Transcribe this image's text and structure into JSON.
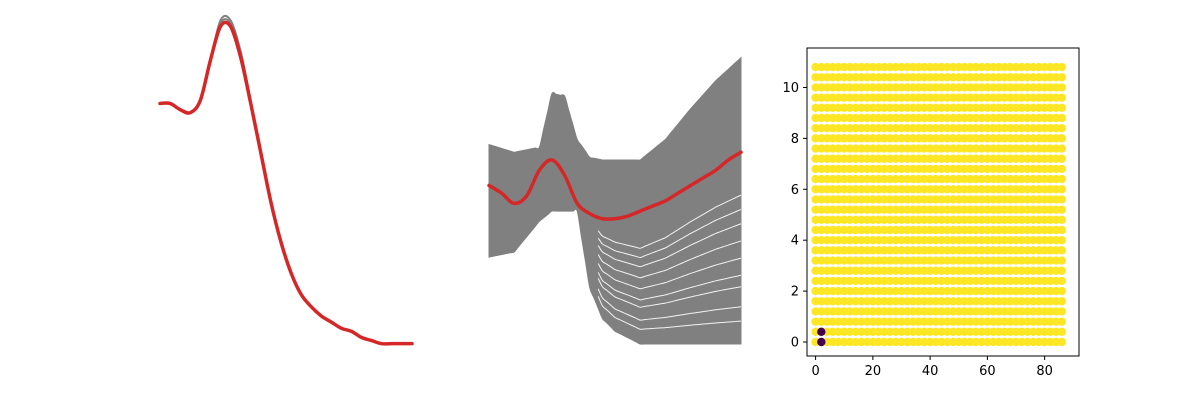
{
  "chart_data": [
    {
      "type": "line",
      "axes_visible": false,
      "series": [
        {
          "role": "samples",
          "color": "#808080",
          "curves": [
            {
              "x": [
                0.0,
                0.04,
                0.08,
                0.12,
                0.16,
                0.2,
                0.24,
                0.28,
                0.32,
                0.36,
                0.4,
                0.44,
                0.48,
                0.52,
                0.56,
                0.6,
                0.64,
                0.68,
                0.72,
                0.76,
                0.8,
                0.84,
                0.88,
                0.92,
                0.96,
                1.0
              ],
              "y": [
                0.82,
                0.82,
                0.8,
                0.79,
                0.83,
                0.96,
                1.08,
                1.08,
                0.98,
                0.82,
                0.66,
                0.5,
                0.37,
                0.27,
                0.2,
                0.16,
                0.13,
                0.11,
                0.09,
                0.08,
                0.06,
                0.05,
                0.04,
                0.04,
                0.04,
                0.04
              ]
            },
            {
              "x": [
                0.0,
                0.04,
                0.08,
                0.12,
                0.16,
                0.2,
                0.24,
                0.28,
                0.32,
                0.36,
                0.4,
                0.44,
                0.48,
                0.52,
                0.56,
                0.6,
                0.64,
                0.68,
                0.72,
                0.76,
                0.8,
                0.84,
                0.88,
                0.92,
                0.96,
                1.0
              ],
              "y": [
                0.82,
                0.82,
                0.8,
                0.79,
                0.83,
                0.96,
                1.09,
                1.09,
                0.99,
                0.83,
                0.66,
                0.5,
                0.37,
                0.27,
                0.2,
                0.16,
                0.13,
                0.11,
                0.09,
                0.08,
                0.06,
                0.05,
                0.04,
                0.04,
                0.04,
                0.04
              ]
            }
          ]
        },
        {
          "role": "mean",
          "color": "#d62728",
          "x": [
            0.0,
            0.04,
            0.08,
            0.12,
            0.16,
            0.2,
            0.24,
            0.28,
            0.32,
            0.36,
            0.4,
            0.44,
            0.48,
            0.52,
            0.56,
            0.6,
            0.64,
            0.68,
            0.72,
            0.76,
            0.8,
            0.84,
            0.88,
            0.92,
            0.96,
            1.0
          ],
          "y": [
            0.82,
            0.82,
            0.8,
            0.79,
            0.83,
            0.96,
            1.07,
            1.07,
            0.97,
            0.82,
            0.66,
            0.5,
            0.37,
            0.27,
            0.2,
            0.16,
            0.13,
            0.11,
            0.09,
            0.08,
            0.06,
            0.05,
            0.04,
            0.04,
            0.04,
            0.04
          ]
        }
      ]
    },
    {
      "type": "line",
      "axes_visible": false,
      "samples": {
        "color": "#808080",
        "band": [
          {
            "x": 0.0,
            "upper": 0.78,
            "lower": 0.34
          },
          {
            "x": 0.1,
            "upper": 0.75,
            "lower": 0.36
          },
          {
            "x": 0.2,
            "upper": 0.77,
            "lower": 0.48
          },
          {
            "x": 0.25,
            "upper": 0.98,
            "lower": 0.52
          },
          {
            "x": 0.3,
            "upper": 0.97,
            "lower": 0.52
          },
          {
            "x": 0.35,
            "upper": 0.8,
            "lower": 0.52
          },
          {
            "x": 0.4,
            "upper": 0.73,
            "lower": 0.22
          },
          {
            "x": 0.45,
            "upper": 0.72,
            "lower": 0.1
          },
          {
            "x": 0.5,
            "upper": 0.72,
            "lower": 0.05
          },
          {
            "x": 0.6,
            "upper": 0.72,
            "lower": 0.0
          },
          {
            "x": 0.7,
            "upper": 0.8,
            "lower": 0.0
          },
          {
            "x": 0.8,
            "upper": 0.92,
            "lower": 0.0
          },
          {
            "x": 0.9,
            "upper": 1.03,
            "lower": 0.0
          },
          {
            "x": 1.0,
            "upper": 1.12,
            "lower": 0.0
          }
        ],
        "gap_curves": [
          0.08,
          0.13,
          0.2,
          0.24,
          0.3,
          0.36,
          0.42,
          0.47,
          0.52
        ]
      },
      "mean": {
        "color": "#d62728",
        "x": [
          0.0,
          0.05,
          0.1,
          0.15,
          0.2,
          0.25,
          0.3,
          0.35,
          0.4,
          0.45,
          0.5,
          0.55,
          0.6,
          0.65,
          0.7,
          0.75,
          0.8,
          0.85,
          0.9,
          0.95,
          1.0
        ],
        "y": [
          0.62,
          0.59,
          0.55,
          0.58,
          0.68,
          0.72,
          0.66,
          0.55,
          0.51,
          0.49,
          0.49,
          0.5,
          0.52,
          0.54,
          0.56,
          0.59,
          0.62,
          0.65,
          0.68,
          0.72,
          0.75
        ]
      }
    },
    {
      "type": "scatter",
      "axes_visible": true,
      "xlim": [
        -3,
        92
      ],
      "ylim": [
        -0.55,
        11.55
      ],
      "xticks": [
        0,
        20,
        40,
        60,
        80
      ],
      "yticks": [
        0,
        2,
        4,
        6,
        8,
        10
      ],
      "grid": false,
      "grid_points": {
        "x_start": 0,
        "x_step": 2,
        "x_count": 44,
        "y_start": 0,
        "y_step": 0.4,
        "y_count": 28,
        "color": "#fde725"
      },
      "highlight_points": [
        {
          "x": 2,
          "y": 0.0,
          "color": "#440154"
        },
        {
          "x": 2,
          "y": 0.4,
          "color": "#440154"
        }
      ]
    }
  ]
}
